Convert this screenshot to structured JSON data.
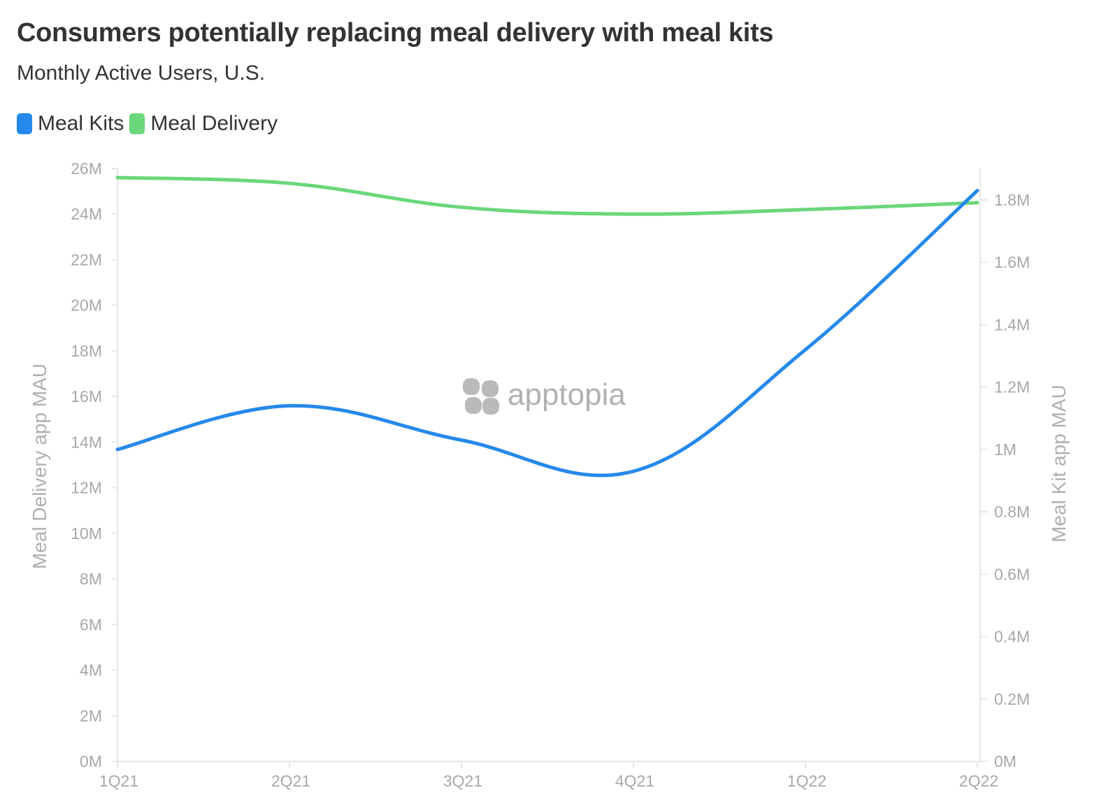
{
  "title": "Consumers potentially replacing meal delivery with meal kits",
  "subtitle": "Monthly Active Users, U.S.",
  "colors": {
    "meal_kits": "#2589ec",
    "meal_delivery": "#6bd67a",
    "axis": "#e6e6e6",
    "tick_text": "#a8a8a8"
  },
  "legend": [
    {
      "label": "Meal Kits",
      "color": "#2589ec"
    },
    {
      "label": "Meal Delivery",
      "color": "#6bd67a"
    }
  ],
  "watermark": {
    "text": "apptopia",
    "icon": "apptopia-logo-icon"
  },
  "chart_data": {
    "type": "line",
    "categories": [
      "1Q21",
      "2Q21",
      "3Q21",
      "4Q21",
      "1Q22",
      "2Q22"
    ],
    "series": [
      {
        "name": "Meal Kits",
        "axis": "right",
        "values": [
          1.0,
          1.14,
          1.03,
          0.93,
          1.32,
          1.83
        ]
      },
      {
        "name": "Meal Delivery",
        "axis": "left",
        "values": [
          25.6,
          25.35,
          24.3,
          24.0,
          24.2,
          24.5
        ]
      }
    ],
    "left_axis": {
      "label": "Meal Delivery app MAU",
      "range": [
        0,
        26
      ],
      "ticks": [
        "0M",
        "2M",
        "4M",
        "6M",
        "8M",
        "10M",
        "12M",
        "14M",
        "16M",
        "18M",
        "20M",
        "22M",
        "24M",
        "26M"
      ]
    },
    "right_axis": {
      "label": "Meal Kit app MAU",
      "range": [
        0,
        1.9
      ],
      "ticks": [
        "0M",
        "0.2M",
        "0.4M",
        "0.6M",
        "0.8M",
        "1M",
        "1.2M",
        "1.4M",
        "1.6M",
        "1.8M"
      ]
    },
    "grid": false,
    "legend_position": "top-left"
  }
}
